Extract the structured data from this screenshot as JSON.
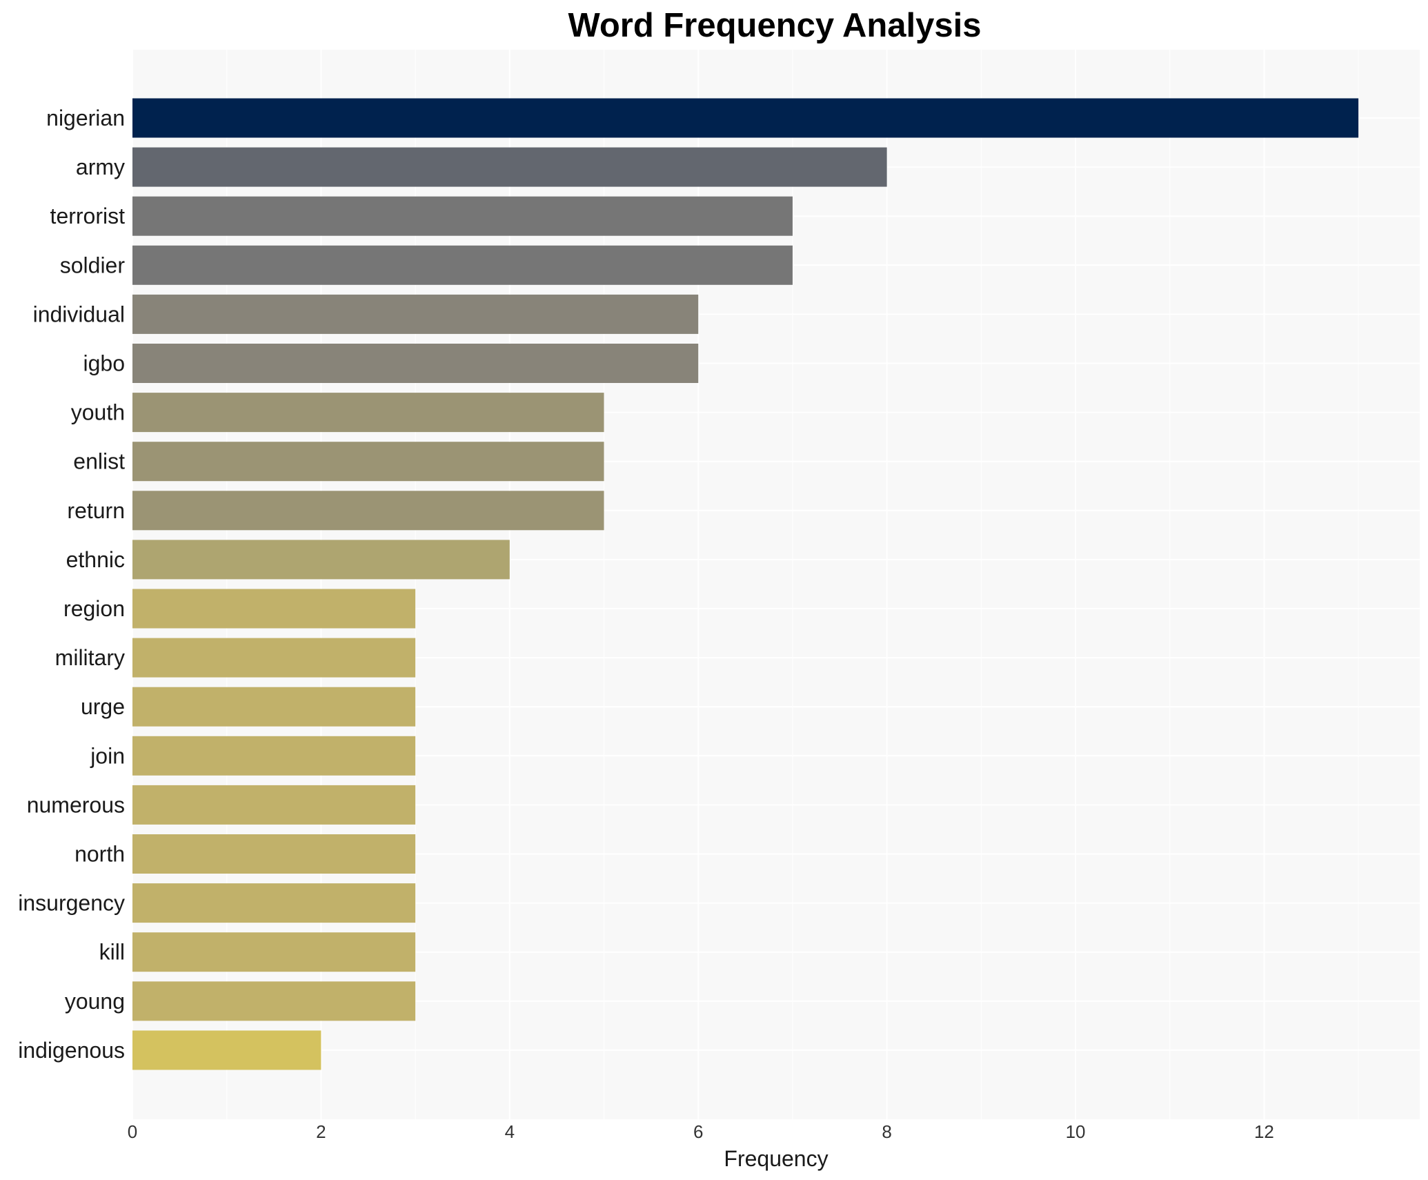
{
  "chart_data": {
    "type": "bar",
    "orientation": "horizontal",
    "title": "Word Frequency Analysis",
    "xlabel": "Frequency",
    "ylabel": "",
    "xlim": [
      0,
      13.65
    ],
    "xticks": [
      0,
      2,
      4,
      6,
      8,
      10,
      12
    ],
    "grid": true,
    "categories": [
      "nigerian",
      "army",
      "terrorist",
      "soldier",
      "individual",
      "igbo",
      "youth",
      "enlist",
      "return",
      "ethnic",
      "region",
      "military",
      "urge",
      "join",
      "numerous",
      "north",
      "insurgency",
      "kill",
      "young",
      "indigenous"
    ],
    "values": [
      13,
      8,
      7,
      7,
      6,
      6,
      5,
      5,
      5,
      4,
      3,
      3,
      3,
      3,
      3,
      3,
      3,
      3,
      3,
      2
    ],
    "colors": [
      "#00224e",
      "#63676f",
      "#767676",
      "#767676",
      "#888479",
      "#888479",
      "#9b9474",
      "#9b9474",
      "#9b9474",
      "#aea570",
      "#c1b16a",
      "#c1b16a",
      "#c1b16a",
      "#c1b16a",
      "#c1b16a",
      "#c1b16a",
      "#c1b16a",
      "#c1b16a",
      "#c1b16a",
      "#d4c25f"
    ],
    "plot_background": "#f8f8f8",
    "grid_color": "#ffffff"
  }
}
